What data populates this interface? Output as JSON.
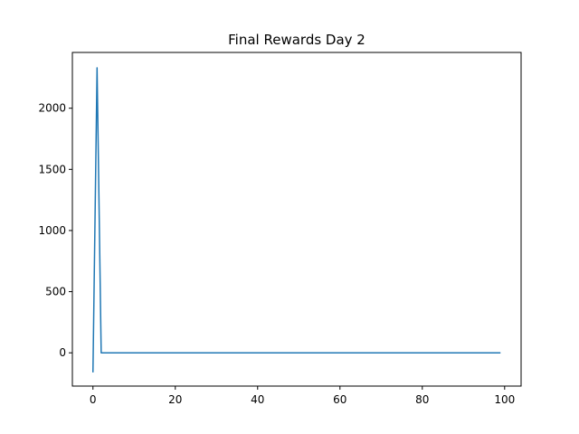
{
  "chart_data": {
    "type": "line",
    "title": "Final Rewards Day 2",
    "xlabel": "",
    "ylabel": "",
    "xlim": [
      -5,
      104
    ],
    "ylim": [
      -272,
      2456
    ],
    "grid": false,
    "xticks": [
      0,
      20,
      40,
      60,
      80,
      100
    ],
    "yticks": [
      0,
      500,
      1000,
      1500,
      2000
    ],
    "colors": {
      "series": "#1f77b4",
      "axes": "#000000",
      "background": "#ffffff"
    },
    "series": [
      {
        "x": [
          0,
          1,
          2,
          3,
          99
        ],
        "values": [
          -160,
          2330,
          0,
          0,
          0
        ]
      }
    ]
  }
}
